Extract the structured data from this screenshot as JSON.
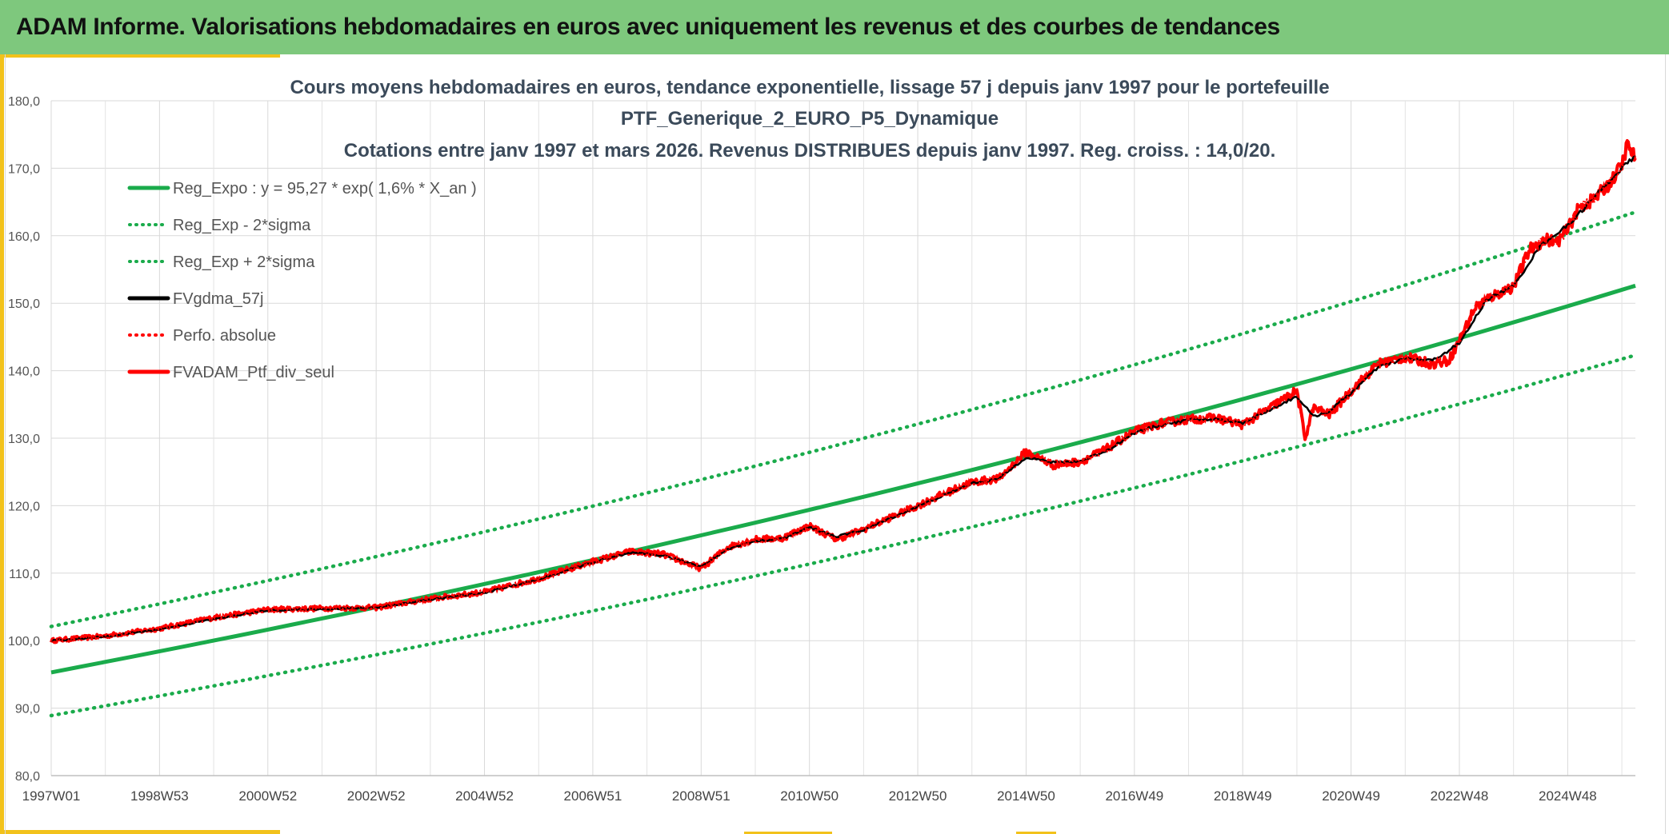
{
  "header": {
    "title": "ADAM Informe. Valorisations hebdomadaires en euros avec uniquement les revenus et des courbes de tendances"
  },
  "colors": {
    "header_bg": "#7ec87d",
    "accent": "#f2c21b",
    "trend_green": "#1aab4b",
    "smooth_black": "#000000",
    "perf_red": "#ff0000",
    "title_text": "#3b4a5a"
  },
  "chart_data": {
    "type": "line",
    "title_lines": [
      "Cours moyens hebdomadaires en euros, tendance exponentielle, lissage 57 j depuis janv 1997 pour le portefeuille",
      "PTF_Generique_2_EURO_P5_Dynamique",
      "Cotations entre janv 1997 et mars 2026. Revenus DISTRIBUES depuis janv 1997. Reg. croiss. : 14,0/20."
    ],
    "ylim": [
      80,
      180
    ],
    "yticks": [
      "80,0",
      "90,0",
      "100,0",
      "110,0",
      "120,0",
      "130,0",
      "140,0",
      "150,0",
      "160,0",
      "170,0",
      "180,0"
    ],
    "xlim": [
      1997.0,
      2026.25
    ],
    "xticks": [
      {
        "label": "1997W01",
        "x": 1997.0
      },
      {
        "label": "1998W53",
        "x": 1999.0
      },
      {
        "label": "2000W52",
        "x": 2001.0
      },
      {
        "label": "2002W52",
        "x": 2003.0
      },
      {
        "label": "2004W52",
        "x": 2005.0
      },
      {
        "label": "2006W51",
        "x": 2007.0
      },
      {
        "label": "2008W51",
        "x": 2009.0
      },
      {
        "label": "2010W50",
        "x": 2011.0
      },
      {
        "label": "2012W50",
        "x": 2013.0
      },
      {
        "label": "2014W50",
        "x": 2015.0
      },
      {
        "label": "2016W49",
        "x": 2017.0
      },
      {
        "label": "2018W49",
        "x": 2019.0
      },
      {
        "label": "2020W49",
        "x": 2021.0
      },
      {
        "label": "2022W48",
        "x": 2023.0
      },
      {
        "label": "2024W48",
        "x": 2025.0
      }
    ],
    "legend": [
      {
        "label": "Reg_Expo : y = 95,27 * exp( 1,6% *  X_an )",
        "style": "solid-green"
      },
      {
        "label": "Reg_Exp - 2*sigma",
        "style": "dotted-green"
      },
      {
        "label": "Reg_Exp + 2*sigma",
        "style": "dotted-green"
      },
      {
        "label": "FVgdma_57j",
        "style": "solid-black"
      },
      {
        "label": "Perfo. absolue",
        "style": "dotted-red"
      },
      {
        "label": "FVADAM_Ptf_div_seul",
        "style": "solid-red"
      }
    ],
    "series": [
      {
        "name": "Reg_Expo",
        "x": [
          1997.0,
          2026.25
        ],
        "y": [
          95.3,
          152.6
        ]
      },
      {
        "name": "Reg_Exp - 2*sigma",
        "x": [
          1997.0,
          2026.25
        ],
        "y": [
          88.9,
          142.3
        ]
      },
      {
        "name": "Reg_Exp + 2*sigma",
        "x": [
          1997.0,
          2026.25
        ],
        "y": [
          102.1,
          163.5
        ]
      },
      {
        "name": "FVADAM_Ptf_div_seul",
        "x": [
          1997.0,
          1998.0,
          1999.0,
          2000.0,
          2001.0,
          2002.0,
          2003.0,
          2004.0,
          2005.0,
          2006.0,
          2007.0,
          2007.7,
          2008.3,
          2009.0,
          2009.5,
          2010.0,
          2010.5,
          2011.0,
          2011.5,
          2012.0,
          2013.0,
          2013.5,
          2014.0,
          2014.5,
          2015.0,
          2015.5,
          2016.0,
          2016.5,
          2017.0,
          2017.5,
          2018.0,
          2018.5,
          2019.0,
          2019.5,
          2020.0,
          2020.15,
          2020.3,
          2020.6,
          2021.0,
          2021.5,
          2022.0,
          2022.5,
          2022.8,
          2023.0,
          2023.3,
          2023.6,
          2024.0,
          2024.3,
          2024.6,
          2024.8,
          2025.0,
          2025.2,
          2025.5,
          2025.8,
          2026.0,
          2026.1,
          2026.25
        ],
        "y": [
          100.0,
          100.7,
          101.8,
          103.4,
          104.6,
          104.8,
          104.9,
          106.2,
          107.2,
          109.2,
          111.7,
          113.2,
          112.8,
          110.7,
          113.9,
          115.0,
          115.2,
          117.0,
          115.0,
          116.5,
          120.0,
          121.8,
          123.5,
          124.0,
          128.0,
          126.0,
          126.5,
          128.5,
          131.0,
          132.2,
          132.8,
          133.0,
          132.0,
          134.5,
          137.0,
          130.0,
          134.5,
          133.5,
          137.0,
          141.0,
          142.0,
          141.0,
          141.5,
          144.5,
          149.5,
          151.0,
          152.5,
          158.0,
          159.5,
          159.0,
          161.0,
          164.0,
          165.5,
          168.0,
          170.5,
          173.5,
          171.5
        ]
      },
      {
        "name": "FVgdma_57j",
        "x": [
          1997.0,
          1998.0,
          1999.0,
          2000.0,
          2001.0,
          2002.0,
          2003.0,
          2004.0,
          2005.0,
          2006.0,
          2007.0,
          2007.7,
          2008.3,
          2009.0,
          2009.5,
          2010.0,
          2010.5,
          2011.0,
          2011.5,
          2012.0,
          2013.0,
          2013.5,
          2014.0,
          2014.5,
          2015.0,
          2015.5,
          2016.0,
          2016.5,
          2017.0,
          2017.5,
          2018.0,
          2018.5,
          2019.0,
          2019.5,
          2020.0,
          2020.3,
          2020.6,
          2021.0,
          2021.5,
          2022.0,
          2022.5,
          2023.0,
          2023.5,
          2024.0,
          2024.5,
          2025.0,
          2025.5,
          2026.0,
          2026.25
        ],
        "y": [
          100.0,
          100.6,
          101.7,
          103.2,
          104.5,
          104.7,
          104.9,
          106.1,
          107.1,
          109.1,
          111.6,
          113.0,
          112.6,
          111.0,
          113.6,
          114.8,
          115.1,
          116.8,
          115.4,
          116.4,
          119.9,
          121.6,
          123.3,
          124.0,
          127.2,
          126.4,
          126.6,
          128.2,
          130.8,
          132.0,
          132.7,
          132.8,
          132.3,
          134.2,
          136.2,
          133.2,
          134.0,
          136.7,
          140.5,
          141.8,
          141.5,
          144.0,
          150.5,
          152.5,
          158.6,
          161.5,
          165.8,
          170.0,
          171.8
        ]
      },
      {
        "name": "Perfo. absolue",
        "x": [
          1997.0,
          1998.0,
          1999.0,
          2000.0,
          2001.0,
          2002.0,
          2003.0,
          2004.0,
          2005.0,
          2006.0,
          2007.0,
          2007.7,
          2008.3,
          2009.0,
          2009.5,
          2010.0,
          2010.5,
          2011.0,
          2011.5,
          2012.0,
          2013.0,
          2013.5,
          2014.0,
          2014.5,
          2015.0,
          2015.5,
          2016.0,
          2016.5,
          2017.0,
          2017.5,
          2018.0,
          2018.5,
          2019.0,
          2019.5,
          2020.0,
          2020.15,
          2020.3,
          2020.6,
          2021.0,
          2021.5,
          2022.0,
          2022.5,
          2022.8,
          2023.0,
          2023.3,
          2023.6,
          2024.0,
          2024.3,
          2024.6,
          2024.8,
          2025.0,
          2025.2,
          2025.5,
          2025.8,
          2026.0,
          2026.1,
          2026.25
        ],
        "y": [
          100.0,
          100.7,
          101.8,
          103.4,
          104.6,
          104.8,
          104.9,
          106.2,
          107.2,
          109.2,
          111.7,
          113.2,
          112.8,
          110.7,
          113.9,
          115.0,
          115.2,
          117.0,
          115.0,
          116.5,
          120.0,
          121.8,
          123.5,
          124.0,
          128.0,
          126.0,
          126.5,
          128.5,
          131.0,
          132.2,
          132.8,
          133.0,
          132.0,
          134.5,
          137.0,
          130.0,
          134.5,
          133.5,
          137.0,
          141.0,
          142.0,
          141.0,
          141.5,
          144.5,
          149.5,
          151.0,
          152.5,
          158.0,
          159.5,
          159.0,
          161.0,
          164.0,
          165.5,
          168.0,
          170.5,
          173.5,
          171.5
        ]
      }
    ]
  }
}
